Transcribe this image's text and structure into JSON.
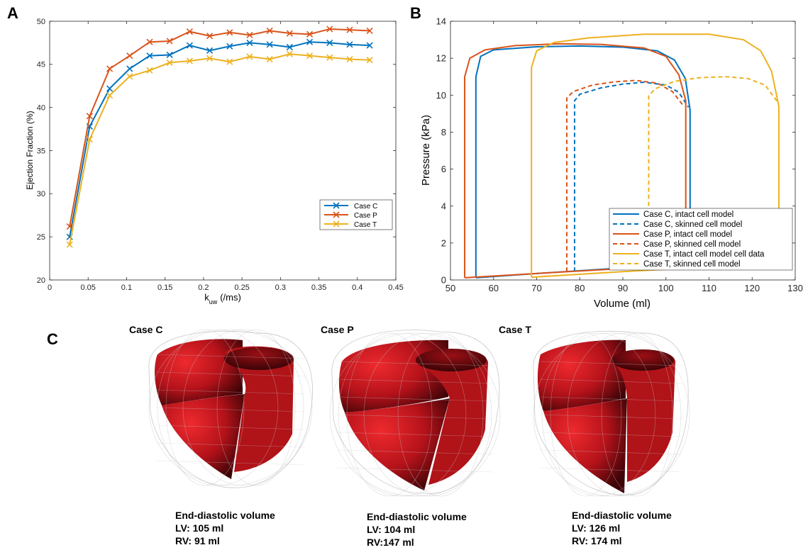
{
  "panels": {
    "A": {
      "letter": "A"
    },
    "B": {
      "letter": "B"
    },
    "C": {
      "letter": "C"
    }
  },
  "chart_data": [
    {
      "type": "line",
      "panel": "A",
      "xlabel_main": "k",
      "xlabel_sub": "uw",
      "xlabel_unit": "(/ms)",
      "ylabel": "Ejection Fraction (%)",
      "xlim": [
        0,
        0.45
      ],
      "ylim": [
        20,
        50
      ],
      "xticks": [
        0,
        0.05,
        0.1,
        0.15,
        0.2,
        0.25,
        0.3,
        0.35,
        0.4,
        0.45
      ],
      "xtick_labels": [
        "0",
        "0.05",
        "0.1",
        "0.15",
        "0.2",
        "0.25",
        "0.3",
        "0.35",
        "0.4",
        "0.45"
      ],
      "yticks": [
        20,
        25,
        30,
        35,
        40,
        45,
        50
      ],
      "ytick_labels": [
        "20",
        "25",
        "30",
        "35",
        "40",
        "45",
        "50"
      ],
      "marker": "x",
      "legend_position": "lower-right",
      "x": [
        0.026,
        0.052,
        0.078,
        0.104,
        0.13,
        0.156,
        0.182,
        0.208,
        0.234,
        0.26,
        0.286,
        0.312,
        0.338,
        0.364,
        0.39,
        0.416
      ],
      "series": [
        {
          "name": "Case C",
          "color": "#0072BD",
          "values": [
            25.0,
            37.8,
            42.2,
            44.5,
            46.0,
            46.1,
            47.2,
            46.6,
            47.1,
            47.5,
            47.3,
            47.0,
            47.6,
            47.5,
            47.3,
            47.2
          ]
        },
        {
          "name": "Case P",
          "color": "#D95319",
          "values": [
            26.2,
            39.0,
            44.5,
            46.0,
            47.6,
            47.7,
            48.8,
            48.3,
            48.7,
            48.4,
            48.9,
            48.6,
            48.5,
            49.1,
            49.0,
            48.9
          ]
        },
        {
          "name": "Case T",
          "color": "#EDB120",
          "values": [
            24.1,
            36.3,
            41.4,
            43.6,
            44.3,
            45.2,
            45.4,
            45.7,
            45.3,
            45.9,
            45.6,
            46.2,
            46.0,
            45.8,
            45.6,
            45.5
          ]
        }
      ]
    },
    {
      "type": "line",
      "panel": "B",
      "xlabel": "Volume (ml)",
      "ylabel": "Pressure (kPa)",
      "xlim": [
        50,
        130
      ],
      "ylim": [
        0,
        14
      ],
      "xticks": [
        50,
        60,
        70,
        80,
        90,
        100,
        110,
        120,
        130
      ],
      "xtick_labels": [
        "50",
        "60",
        "70",
        "80",
        "90",
        "100",
        "110",
        "120",
        "130"
      ],
      "yticks": [
        0,
        2,
        4,
        6,
        8,
        10,
        12,
        14
      ],
      "ytick_labels": [
        "0",
        "2",
        "4",
        "6",
        "8",
        "10",
        "12",
        "14"
      ],
      "legend_position": "lower-right",
      "series": [
        {
          "name": "Case C, intact cell model",
          "color": "#0072BD",
          "dash": false,
          "points": [
            [
              55.9,
              0.12
            ],
            [
              55.9,
              11.0
            ],
            [
              57,
              12.1
            ],
            [
              60,
              12.45
            ],
            [
              70,
              12.62
            ],
            [
              80,
              12.66
            ],
            [
              90,
              12.6
            ],
            [
              98,
              12.4
            ],
            [
              102,
              11.9
            ],
            [
              104.5,
              10.9
            ],
            [
              105.6,
              9.2
            ],
            [
              105.6,
              0.9
            ],
            [
              90,
              0.65
            ],
            [
              70,
              0.35
            ],
            [
              55.9,
              0.12
            ]
          ]
        },
        {
          "name": "Case C, skinned cell model",
          "color": "#0072BD",
          "dash": true,
          "points": [
            [
              78.8,
              0.45
            ],
            [
              78.8,
              9.7
            ],
            [
              80,
              10.05
            ],
            [
              85,
              10.4
            ],
            [
              90,
              10.6
            ],
            [
              95,
              10.7
            ],
            [
              100,
              10.55
            ],
            [
              103,
              10.15
            ],
            [
              105.2,
              9.35
            ]
          ]
        },
        {
          "name": "Case P, intact cell model",
          "color": "#D95319",
          "dash": false,
          "points": [
            [
              53.3,
              0.12
            ],
            [
              53.3,
              11.0
            ],
            [
              54.5,
              12.0
            ],
            [
              58,
              12.45
            ],
            [
              65,
              12.68
            ],
            [
              75,
              12.78
            ],
            [
              85,
              12.75
            ],
            [
              95,
              12.55
            ],
            [
              100,
              12.1
            ],
            [
              103,
              11.1
            ],
            [
              104.6,
              9.7
            ],
            [
              104.6,
              0.85
            ],
            [
              90,
              0.62
            ],
            [
              70,
              0.35
            ],
            [
              53.3,
              0.12
            ]
          ]
        },
        {
          "name": "Case P, skinned cell model",
          "color": "#D95319",
          "dash": true,
          "points": [
            [
              77.0,
              0.45
            ],
            [
              77.0,
              9.85
            ],
            [
              78.5,
              10.2
            ],
            [
              83,
              10.55
            ],
            [
              88,
              10.72
            ],
            [
              93,
              10.8
            ],
            [
              98,
              10.65
            ],
            [
              101.5,
              10.2
            ],
            [
              103.8,
              9.5
            ]
          ]
        },
        {
          "name": "Case T, intact cell model cell data",
          "color": "#EDB120",
          "dash": false,
          "points": [
            [
              68.8,
              0.15
            ],
            [
              68.8,
              11.5
            ],
            [
              70,
              12.4
            ],
            [
              74,
              12.85
            ],
            [
              82,
              13.1
            ],
            [
              95,
              13.3
            ],
            [
              110,
              13.3
            ],
            [
              118,
              13.0
            ],
            [
              122,
              12.4
            ],
            [
              124.5,
              11.3
            ],
            [
              126.2,
              9.4
            ],
            [
              126.2,
              0.9
            ],
            [
              110,
              0.7
            ],
            [
              90,
              0.45
            ],
            [
              68.8,
              0.15
            ]
          ]
        },
        {
          "name": "Case T, skinned cell model",
          "color": "#EDB120",
          "dash": true,
          "points": [
            [
              96.0,
              0.55
            ],
            [
              96.0,
              9.95
            ],
            [
              97.5,
              10.35
            ],
            [
              102,
              10.75
            ],
            [
              108,
              10.95
            ],
            [
              114,
              11.0
            ],
            [
              119,
              10.9
            ],
            [
              123,
              10.55
            ],
            [
              126.0,
              9.6
            ]
          ]
        }
      ]
    }
  ],
  "panelC": {
    "hearts": [
      {
        "case_label": "Case C",
        "caption_title": "End-diastolic volume",
        "lv": "LV: 105 ml",
        "rv": "RV: 91 ml"
      },
      {
        "case_label": "Case P",
        "caption_title": "End-diastolic volume",
        "lv": "LV: 104 ml",
        "rv": "RV:147 ml"
      },
      {
        "case_label": "Case T",
        "caption_title": "End-diastolic volume",
        "lv": "LV: 126 ml",
        "rv": "RV: 174 ml"
      }
    ],
    "colors": {
      "myocardium": "#c0151b",
      "myocardium_dark": "#4a0508",
      "myocardium_light": "#e4252a",
      "mesh": "#bdbdbd"
    }
  }
}
